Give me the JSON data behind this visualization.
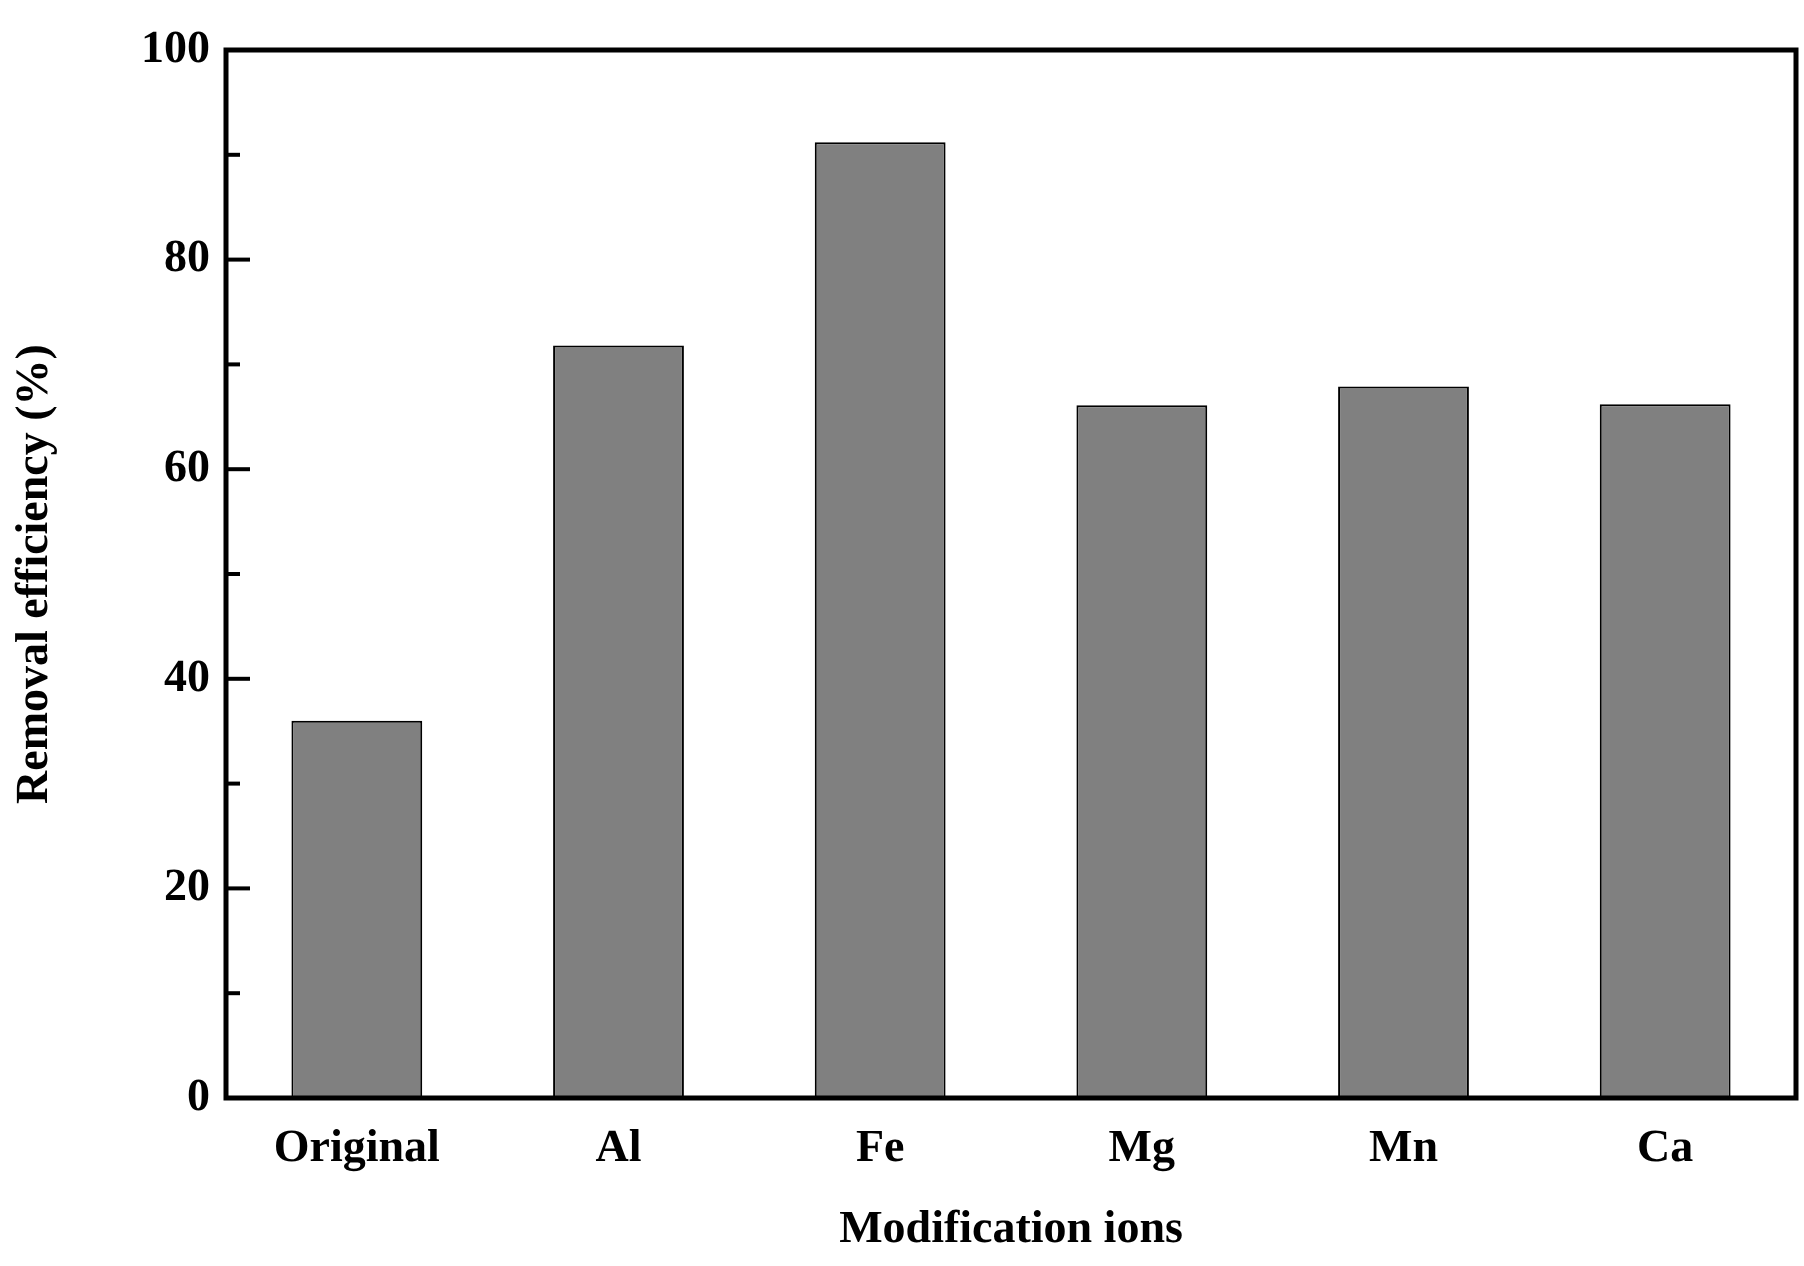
{
  "chart_data": {
    "type": "bar",
    "xlabel": "Modification ions",
    "ylabel": "Removal efficiency (%)",
    "categories": [
      "Original",
      "Al",
      "Fe",
      "Mg",
      "Mn",
      "Ca"
    ],
    "values": [
      36.0,
      71.8,
      91.2,
      66.1,
      67.9,
      66.2
    ],
    "color": "#808080",
    "ylim": [
      0,
      100
    ],
    "yticks": [
      0,
      {
        "value": 10,
        "label": null
      },
      20,
      {
        "value": 30,
        "label": null
      },
      40,
      {
        "value": 50,
        "label": null
      },
      60,
      {
        "value": 70,
        "label": null
      },
      80,
      {
        "value": 90,
        "label": null
      },
      100
    ],
    "grid": false,
    "legend": false
  }
}
